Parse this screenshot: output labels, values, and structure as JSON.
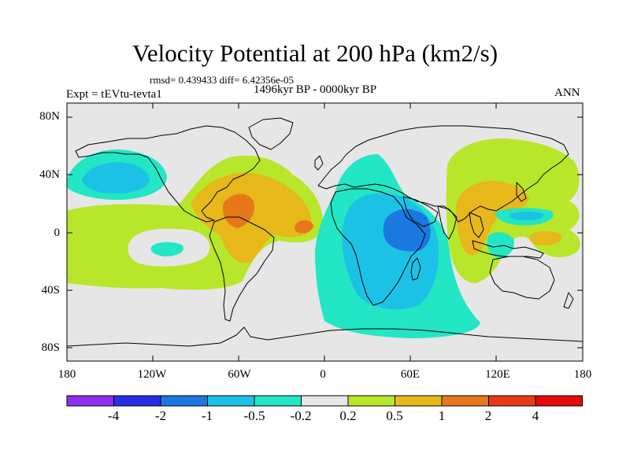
{
  "title": "Velocity Potential at 200 hPa (km2/s)",
  "stats": "rmsd= 0.439433 diff= 6.42356e-05",
  "period": "1496kyr BP - 0000kyr BP",
  "experiment": "Expt = tEVtu-tevta1",
  "season": "ANN",
  "map": {
    "lat_labels": [
      "80N",
      "40N",
      "0",
      "40S",
      "80S"
    ],
    "lon_labels": [
      "180",
      "120W",
      "60W",
      "0",
      "60E",
      "120E",
      "180"
    ]
  },
  "colorbar": {
    "labels": [
      "-4",
      "-2",
      "-1",
      "-0.5",
      "-0.2",
      "0.2",
      "0.5",
      "1",
      "2",
      "4"
    ],
    "colors": [
      "#8f2ff0",
      "#2a2ce6",
      "#1a78e0",
      "#1cc2e6",
      "#22e6c4",
      "#e6e6e6",
      "#b8e62a",
      "#e6b81a",
      "#e6781a",
      "#e63a14",
      "#e60a0a"
    ]
  },
  "colors": {
    "neutral": "#e6e6e6",
    "coast": "#000000"
  }
}
